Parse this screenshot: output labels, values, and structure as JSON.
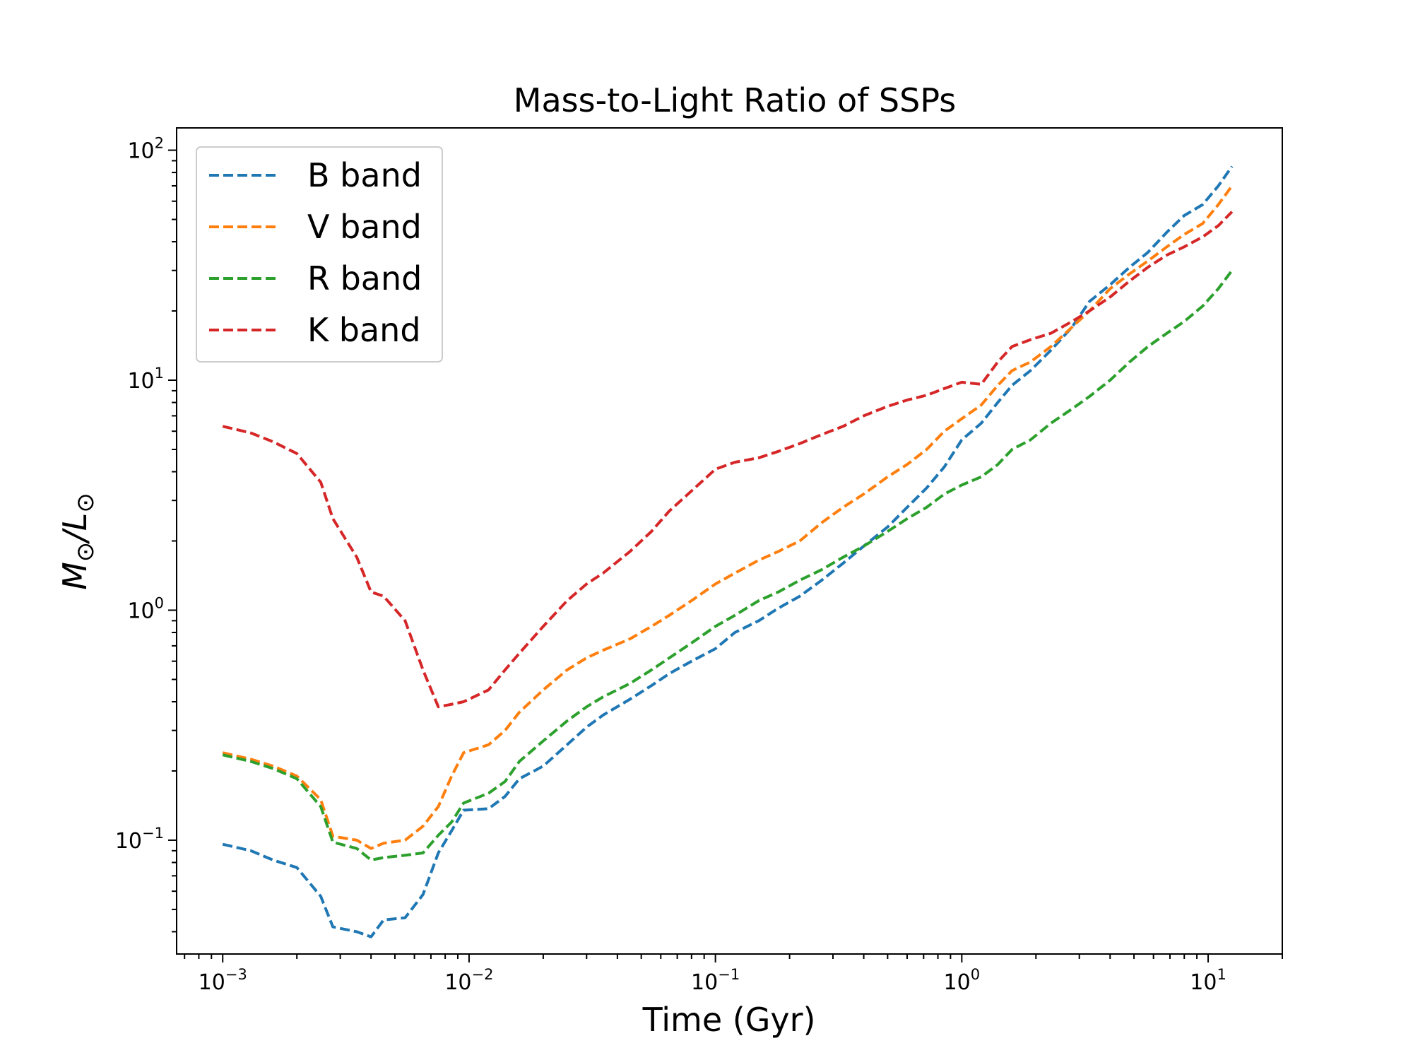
{
  "chart_data": {
    "type": "line",
    "title": "Mass-to-Light Ratio of SSPs",
    "xlabel": "Time (Gyr)",
    "ylabel_main": "M",
    "ylabel_sub": "⊙",
    "ylabel_sep": "/L",
    "xscale": "log",
    "yscale": "log",
    "xlim": [
      0.00065,
      20
    ],
    "ylim": [
      0.032,
      125
    ],
    "x_ticks": [
      {
        "value": 0.001,
        "base": "10",
        "exp": "−3"
      },
      {
        "value": 0.01,
        "base": "10",
        "exp": "−2"
      },
      {
        "value": 0.1,
        "base": "10",
        "exp": "−1"
      },
      {
        "value": 1,
        "base": "10",
        "exp": "0"
      },
      {
        "value": 10,
        "base": "10",
        "exp": "1"
      }
    ],
    "y_ticks": [
      {
        "value": 0.1,
        "base": "10",
        "exp": "−1"
      },
      {
        "value": 1,
        "base": "10",
        "exp": "0"
      },
      {
        "value": 10,
        "base": "10",
        "exp": "1"
      },
      {
        "value": 100,
        "base": "10",
        "exp": "2"
      }
    ],
    "grid": false,
    "legend_position": "top-left",
    "linestyle": "dashed",
    "series": [
      {
        "name": "B band",
        "color": "#1f77b4",
        "points": [
          [
            0.001,
            0.096
          ],
          [
            0.0013,
            0.09
          ],
          [
            0.0016,
            0.082
          ],
          [
            0.002,
            0.076
          ],
          [
            0.0025,
            0.057
          ],
          [
            0.0028,
            0.042
          ],
          [
            0.0035,
            0.04
          ],
          [
            0.004,
            0.038
          ],
          [
            0.0045,
            0.045
          ],
          [
            0.0055,
            0.046
          ],
          [
            0.0065,
            0.058
          ],
          [
            0.0075,
            0.088
          ],
          [
            0.0085,
            0.11
          ],
          [
            0.0095,
            0.135
          ],
          [
            0.012,
            0.137
          ],
          [
            0.014,
            0.155
          ],
          [
            0.016,
            0.185
          ],
          [
            0.02,
            0.21
          ],
          [
            0.025,
            0.26
          ],
          [
            0.03,
            0.31
          ],
          [
            0.035,
            0.35
          ],
          [
            0.045,
            0.41
          ],
          [
            0.055,
            0.47
          ],
          [
            0.065,
            0.53
          ],
          [
            0.08,
            0.6
          ],
          [
            0.1,
            0.68
          ],
          [
            0.12,
            0.8
          ],
          [
            0.15,
            0.9
          ],
          [
            0.18,
            1.02
          ],
          [
            0.22,
            1.15
          ],
          [
            0.27,
            1.35
          ],
          [
            0.33,
            1.6
          ],
          [
            0.4,
            1.9
          ],
          [
            0.5,
            2.3
          ],
          [
            0.6,
            2.8
          ],
          [
            0.72,
            3.4
          ],
          [
            0.85,
            4.2
          ],
          [
            1.0,
            5.5
          ],
          [
            1.2,
            6.5
          ],
          [
            1.4,
            8.0
          ],
          [
            1.6,
            9.5
          ],
          [
            1.9,
            11.0
          ],
          [
            2.3,
            13.5
          ],
          [
            2.8,
            17.0
          ],
          [
            3.3,
            22.0
          ],
          [
            4.0,
            26.0
          ],
          [
            4.8,
            31.0
          ],
          [
            5.7,
            36.0
          ],
          [
            6.8,
            44.0
          ],
          [
            8.0,
            52.0
          ],
          [
            9.5,
            58.0
          ],
          [
            11.0,
            70.0
          ],
          [
            12.5,
            85.0
          ]
        ]
      },
      {
        "name": "V band",
        "color": "#ff7f0e",
        "points": [
          [
            0.001,
            0.24
          ],
          [
            0.0013,
            0.225
          ],
          [
            0.0016,
            0.21
          ],
          [
            0.002,
            0.19
          ],
          [
            0.0025,
            0.15
          ],
          [
            0.0028,
            0.104
          ],
          [
            0.0035,
            0.1
          ],
          [
            0.004,
            0.092
          ],
          [
            0.0045,
            0.097
          ],
          [
            0.0055,
            0.1
          ],
          [
            0.0065,
            0.115
          ],
          [
            0.0075,
            0.14
          ],
          [
            0.0085,
            0.19
          ],
          [
            0.0095,
            0.24
          ],
          [
            0.012,
            0.26
          ],
          [
            0.014,
            0.3
          ],
          [
            0.016,
            0.36
          ],
          [
            0.02,
            0.45
          ],
          [
            0.025,
            0.55
          ],
          [
            0.03,
            0.62
          ],
          [
            0.035,
            0.67
          ],
          [
            0.045,
            0.75
          ],
          [
            0.055,
            0.85
          ],
          [
            0.065,
            0.95
          ],
          [
            0.08,
            1.1
          ],
          [
            0.1,
            1.3
          ],
          [
            0.12,
            1.45
          ],
          [
            0.15,
            1.65
          ],
          [
            0.18,
            1.8
          ],
          [
            0.22,
            2.0
          ],
          [
            0.27,
            2.4
          ],
          [
            0.33,
            2.8
          ],
          [
            0.4,
            3.2
          ],
          [
            0.5,
            3.8
          ],
          [
            0.6,
            4.3
          ],
          [
            0.72,
            5.0
          ],
          [
            0.85,
            6.0
          ],
          [
            1.0,
            6.8
          ],
          [
            1.2,
            7.8
          ],
          [
            1.4,
            9.5
          ],
          [
            1.6,
            11.0
          ],
          [
            1.9,
            12.0
          ],
          [
            2.3,
            14.0
          ],
          [
            2.8,
            17.0
          ],
          [
            3.3,
            20.0
          ],
          [
            4.0,
            25.0
          ],
          [
            4.8,
            29.0
          ],
          [
            5.7,
            33.0
          ],
          [
            6.8,
            38.0
          ],
          [
            8.0,
            43.0
          ],
          [
            9.5,
            48.0
          ],
          [
            11.0,
            58.0
          ],
          [
            12.5,
            70.0
          ]
        ]
      },
      {
        "name": "R band",
        "color": "#2ca02c",
        "points": [
          [
            0.001,
            0.235
          ],
          [
            0.0013,
            0.22
          ],
          [
            0.0016,
            0.205
          ],
          [
            0.002,
            0.185
          ],
          [
            0.0025,
            0.14
          ],
          [
            0.0028,
            0.098
          ],
          [
            0.0035,
            0.092
          ],
          [
            0.004,
            0.082
          ],
          [
            0.0045,
            0.084
          ],
          [
            0.0055,
            0.086
          ],
          [
            0.0065,
            0.088
          ],
          [
            0.0075,
            0.105
          ],
          [
            0.0085,
            0.12
          ],
          [
            0.0095,
            0.145
          ],
          [
            0.012,
            0.16
          ],
          [
            0.014,
            0.18
          ],
          [
            0.016,
            0.22
          ],
          [
            0.02,
            0.27
          ],
          [
            0.025,
            0.33
          ],
          [
            0.03,
            0.38
          ],
          [
            0.035,
            0.42
          ],
          [
            0.045,
            0.48
          ],
          [
            0.055,
            0.55
          ],
          [
            0.065,
            0.62
          ],
          [
            0.08,
            0.72
          ],
          [
            0.1,
            0.85
          ],
          [
            0.12,
            0.95
          ],
          [
            0.15,
            1.1
          ],
          [
            0.18,
            1.2
          ],
          [
            0.22,
            1.35
          ],
          [
            0.27,
            1.5
          ],
          [
            0.33,
            1.7
          ],
          [
            0.4,
            1.9
          ],
          [
            0.5,
            2.2
          ],
          [
            0.6,
            2.5
          ],
          [
            0.72,
            2.8
          ],
          [
            0.85,
            3.2
          ],
          [
            1.0,
            3.5
          ],
          [
            1.2,
            3.8
          ],
          [
            1.4,
            4.3
          ],
          [
            1.6,
            5.0
          ],
          [
            1.9,
            5.5
          ],
          [
            2.3,
            6.5
          ],
          [
            2.8,
            7.5
          ],
          [
            3.3,
            8.5
          ],
          [
            4.0,
            10.0
          ],
          [
            4.8,
            12.0
          ],
          [
            5.7,
            14.0
          ],
          [
            6.8,
            16.0
          ],
          [
            8.0,
            18.0
          ],
          [
            9.5,
            21.0
          ],
          [
            11.0,
            25.0
          ],
          [
            12.5,
            30.0
          ]
        ]
      },
      {
        "name": "K band",
        "color": "#d62728",
        "points": [
          [
            0.001,
            6.3
          ],
          [
            0.0013,
            5.9
          ],
          [
            0.0016,
            5.4
          ],
          [
            0.002,
            4.8
          ],
          [
            0.0025,
            3.6
          ],
          [
            0.0028,
            2.5
          ],
          [
            0.0035,
            1.7
          ],
          [
            0.004,
            1.2
          ],
          [
            0.0045,
            1.15
          ],
          [
            0.0055,
            0.9
          ],
          [
            0.0065,
            0.55
          ],
          [
            0.0075,
            0.38
          ],
          [
            0.0085,
            0.39
          ],
          [
            0.0095,
            0.4
          ],
          [
            0.012,
            0.45
          ],
          [
            0.014,
            0.55
          ],
          [
            0.016,
            0.65
          ],
          [
            0.02,
            0.85
          ],
          [
            0.025,
            1.1
          ],
          [
            0.03,
            1.3
          ],
          [
            0.035,
            1.45
          ],
          [
            0.045,
            1.8
          ],
          [
            0.055,
            2.2
          ],
          [
            0.065,
            2.7
          ],
          [
            0.08,
            3.3
          ],
          [
            0.1,
            4.1
          ],
          [
            0.12,
            4.4
          ],
          [
            0.15,
            4.6
          ],
          [
            0.18,
            4.9
          ],
          [
            0.22,
            5.3
          ],
          [
            0.27,
            5.8
          ],
          [
            0.33,
            6.3
          ],
          [
            0.4,
            7.0
          ],
          [
            0.5,
            7.7
          ],
          [
            0.6,
            8.2
          ],
          [
            0.72,
            8.6
          ],
          [
            0.85,
            9.2
          ],
          [
            1.0,
            9.8
          ],
          [
            1.2,
            9.6
          ],
          [
            1.4,
            12.0
          ],
          [
            1.6,
            14.0
          ],
          [
            1.9,
            15.0
          ],
          [
            2.3,
            16.0
          ],
          [
            2.8,
            18.0
          ],
          [
            3.3,
            20.0
          ],
          [
            4.0,
            23.0
          ],
          [
            4.8,
            27.0
          ],
          [
            5.7,
            31.0
          ],
          [
            6.8,
            35.0
          ],
          [
            8.0,
            38.0
          ],
          [
            9.5,
            42.0
          ],
          [
            11.0,
            47.0
          ],
          [
            12.5,
            54.0
          ]
        ]
      }
    ]
  }
}
